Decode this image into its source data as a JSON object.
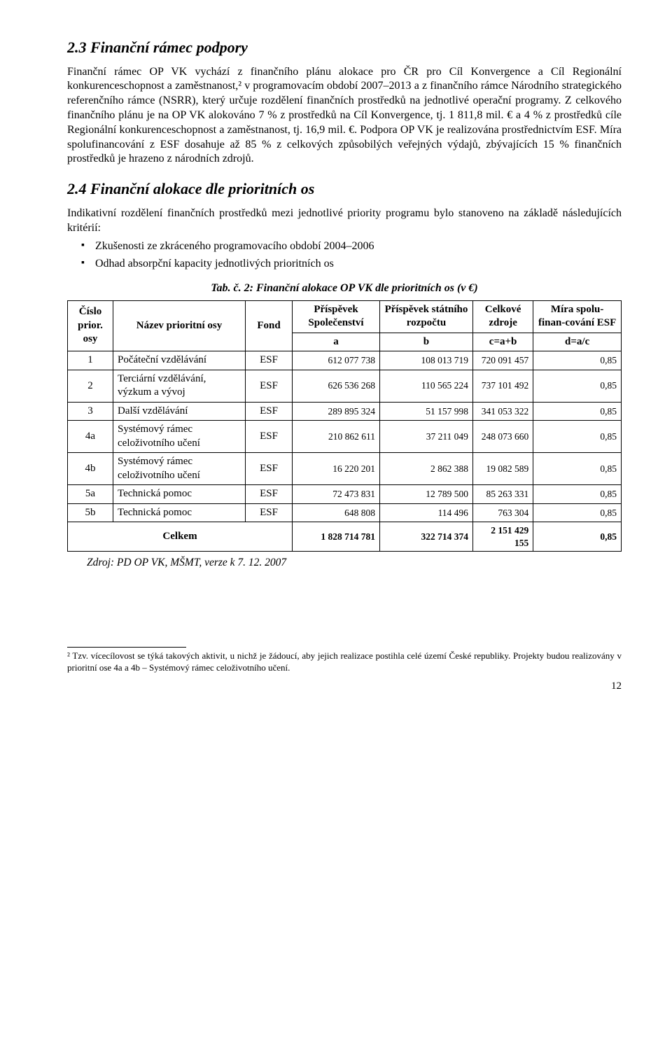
{
  "section23": {
    "heading": "2.3   Finanční rámec podpory",
    "para": "Finanční rámec OP VK vychází z finančního plánu alokace pro ČR pro Cíl Konvergence a Cíl Regionální konkurenceschopnost a zaměstnanost,² v programovacím období 2007–2013 a z finančního rámce Národního strategického referenčního rámce (NSRR), který určuje rozdělení finančních prostředků na jednotlivé operační programy. Z celkového finančního plánu je na OP VK alokováno 7 % z prostředků na Cíl Konvergence, tj. 1 811,8 mil. € a 4 % z prostředků cíle Regionální konkurenceschopnost a zaměstnanost, tj. 16,9 mil. €. Podpora OP VK je realizována prostřednictvím ESF. Míra spolufinancování z ESF dosahuje až 85 % z celkových způsobilých veřejných výdajů, zbývajících 15 % finančních prostředků je hrazeno z národních zdrojů."
  },
  "section24": {
    "heading": "2.4   Finanční alokace dle prioritních os",
    "intro": "Indikativní rozdělení finančních prostředků mezi jednotlivé priority programu bylo stanoveno na základě následujících kritérií:",
    "bullets": [
      "Zkušenosti ze zkráceného programovacího období 2004–2006",
      "Odhad absorpční kapacity jednotlivých prioritních os"
    ],
    "caption": "Tab. č. 2: Finanční alokace OP VK dle prioritních os (v €)"
  },
  "table": {
    "headers": {
      "cislo": "Číslo prior. osy",
      "nazev": "Název prioritní osy",
      "fond": "Fond",
      "prispevek_spol": "Příspěvek Společenství",
      "prispevek_stat": "Příspěvek státního rozpočtu",
      "celkove": "Celkové zdroje",
      "mira": "Míra spolu-finan-cování ESF",
      "a": "a",
      "b": "b",
      "c": "c=a+b",
      "d": "d=a/c"
    },
    "rows": [
      {
        "n": "1",
        "name": "Počáteční vzdělávání",
        "fond": "ESF",
        "a": "612 077 738",
        "b": "108 013 719",
        "c": "720 091 457",
        "d": "0,85"
      },
      {
        "n": "2",
        "name": "Terciární vzdělávání, výzkum a vývoj",
        "fond": "ESF",
        "a": "626 536 268",
        "b": "110 565 224",
        "c": "737 101 492",
        "d": "0,85"
      },
      {
        "n": "3",
        "name": "Další vzdělávání",
        "fond": "ESF",
        "a": "289 895 324",
        "b": "51 157 998",
        "c": "341 053 322",
        "d": "0,85"
      },
      {
        "n": "4a",
        "name": "Systémový rámec celoživotního učení",
        "fond": "ESF",
        "a": "210 862 611",
        "b": "37 211 049",
        "c": "248 073 660",
        "d": "0,85"
      },
      {
        "n": "4b",
        "name": "Systémový rámec celoživotního učení",
        "fond": "ESF",
        "a": "16 220 201",
        "b": "2 862 388",
        "c": "19 082 589",
        "d": "0,85"
      },
      {
        "n": "5a",
        "name": "Technická pomoc",
        "fond": "ESF",
        "a": "72 473 831",
        "b": "12 789 500",
        "c": "85 263 331",
        "d": "0,85"
      },
      {
        "n": "5b",
        "name": "Technická pomoc",
        "fond": "ESF",
        "a": "648 808",
        "b": "114 496",
        "c": "763 304",
        "d": "0,85"
      }
    ],
    "total": {
      "label": "Celkem",
      "a": "1 828 714 781",
      "b": "322 714 374",
      "c": "2 151 429 155",
      "d": "0,85"
    },
    "source": "Zdroj: PD OP VK, MŠMT, verze k 7. 12. 2007"
  },
  "footnote": "² Tzv. vícecílovost se týká takových aktivit, u nichž je žádoucí, aby jejich realizace postihla celé území České republiky. Projekty budou realizovány v prioritní ose 4a a 4b – Systémový rámec celoživotního učení.",
  "pagenum": "12"
}
